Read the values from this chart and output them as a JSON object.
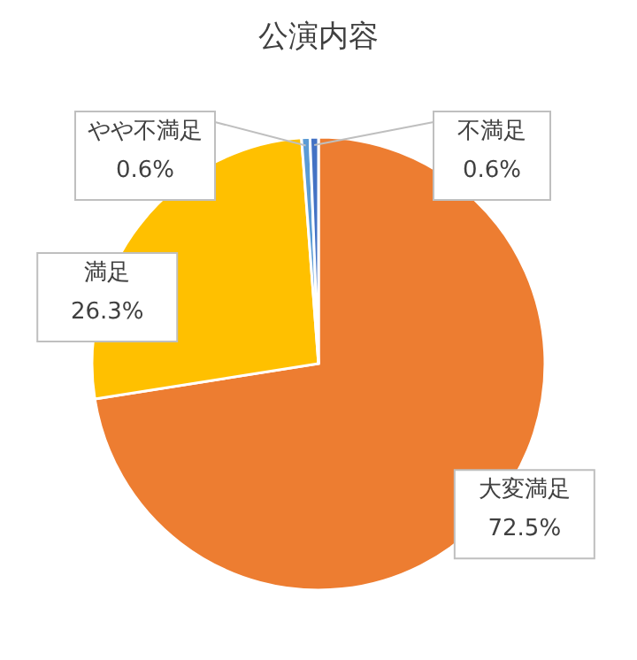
{
  "chart_data": {
    "type": "pie",
    "title": "公演内容",
    "categories": [
      "大変満足",
      "満足",
      "やや不満足",
      "不満足"
    ],
    "values": [
      72.5,
      26.3,
      0.6,
      0.6
    ],
    "value_labels": [
      "72.5%",
      "26.3%",
      "0.6%",
      "0.6%"
    ],
    "colors": [
      "#ed7d31",
      "#ffc000",
      "#5b9bd5",
      "#4472c4"
    ]
  }
}
